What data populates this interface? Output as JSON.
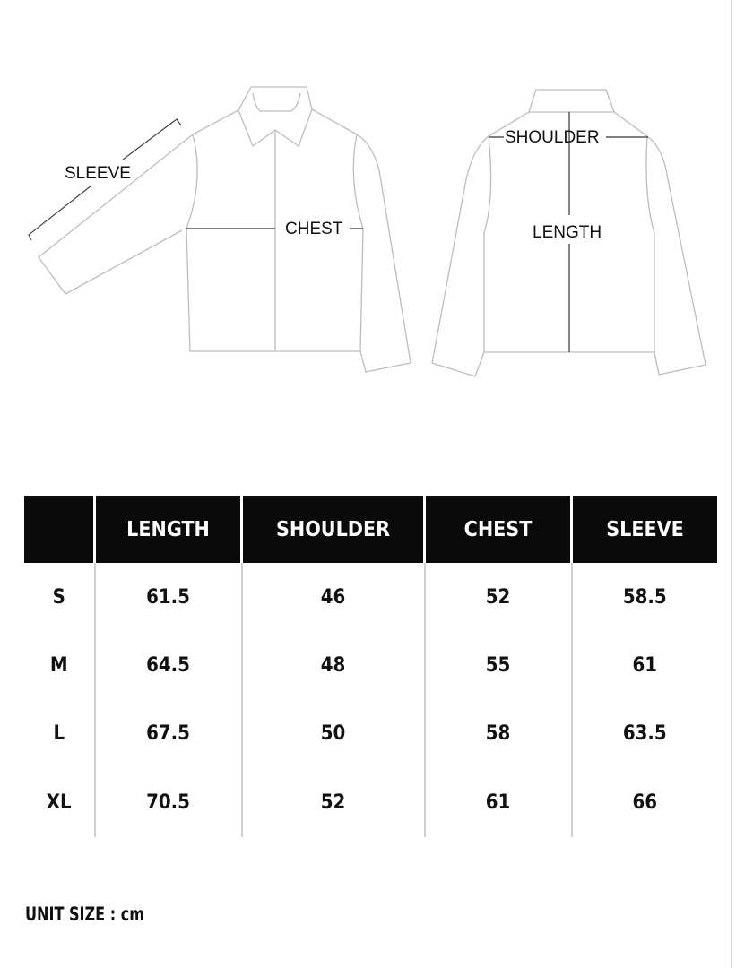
{
  "diagram": {
    "front_labels": {
      "sleeve": "SLEEVE",
      "chest": "CHEST"
    },
    "back_labels": {
      "shoulder": "SHOULDER",
      "length": "LENGTH"
    }
  },
  "table": {
    "headers": [
      "",
      "LENGTH",
      "SHOULDER",
      "CHEST",
      "SLEEVE"
    ],
    "rows": [
      [
        "S",
        "61.5",
        "46",
        "52",
        "58.5"
      ],
      [
        "M",
        "64.5",
        "48",
        "55",
        "61"
      ],
      [
        "L",
        "67.5",
        "50",
        "58",
        "63.5"
      ],
      [
        "XL",
        "70.5",
        "52",
        "61",
        "66"
      ]
    ]
  },
  "footer": {
    "unit": "UNIT SIZE : cm"
  }
}
